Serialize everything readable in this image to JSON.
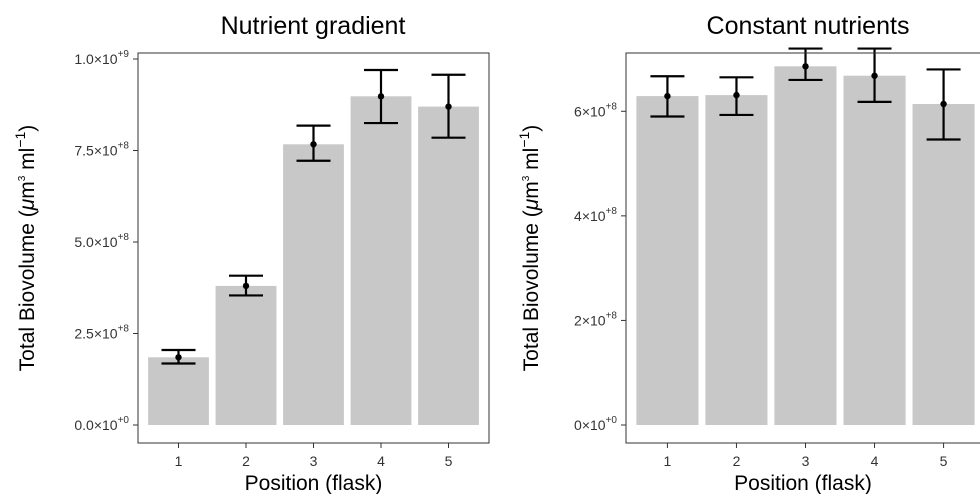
{
  "chart_data": [
    {
      "type": "bar",
      "title": "Nutrient gradient",
      "xlabel": "Position (flask)",
      "ylabel_text": "Total Biovolume (",
      "ylabel_mu": "μ",
      "ylabel_m": "m",
      "ylabel_exp3": "3",
      "ylabel_ml": " ml",
      "ylabel_expm1": "−1",
      "ylabel_close": ")",
      "ylim": [
        0,
        1000000000
      ],
      "yticks": [
        {
          "value": 0,
          "mantissa": "0.0",
          "exponent": "+0"
        },
        {
          "value": 250000000,
          "mantissa": "2.5",
          "exponent": "+8"
        },
        {
          "value": 500000000,
          "mantissa": "5.0",
          "exponent": "+8"
        },
        {
          "value": 750000000,
          "mantissa": "7.5",
          "exponent": "+8"
        },
        {
          "value": 1000000000,
          "mantissa": "1.0",
          "exponent": "+9"
        }
      ],
      "tick_times": "×10",
      "categories": [
        "1",
        "2",
        "3",
        "4",
        "5"
      ],
      "values": [
        185000000,
        380000000,
        767000000,
        898000000,
        870000000
      ],
      "error_upper": [
        205000000,
        408000000,
        818000000,
        970000000,
        957000000
      ],
      "error_lower": [
        168000000,
        354000000,
        722000000,
        825000000,
        785000000
      ],
      "grid": false,
      "bar_color": "#c8c8c8"
    },
    {
      "type": "bar",
      "title": "Constant nutrients",
      "xlabel": "Position (flask)",
      "ylabel_text": "Total Biovolume (",
      "ylabel_mu": "μ",
      "ylabel_m": "m",
      "ylabel_exp3": "3",
      "ylabel_ml": " ml",
      "ylabel_expm1": "−1",
      "ylabel_close": ")",
      "ylim": [
        0,
        700000000
      ],
      "yticks": [
        {
          "value": 0,
          "mantissa": "0",
          "exponent": "+0"
        },
        {
          "value": 200000000,
          "mantissa": "2",
          "exponent": "+8"
        },
        {
          "value": 400000000,
          "mantissa": "4",
          "exponent": "+8"
        },
        {
          "value": 600000000,
          "mantissa": "6",
          "exponent": "+8"
        }
      ],
      "tick_times": "×10",
      "categories": [
        "1",
        "2",
        "3",
        "4",
        "5"
      ],
      "values": [
        629000000,
        631000000,
        686000000,
        668000000,
        614000000
      ],
      "error_upper": [
        667000000,
        665000000,
        720000000,
        720000000,
        680000000
      ],
      "error_lower": [
        590000000,
        593000000,
        660000000,
        618000000,
        546000000
      ],
      "grid": false,
      "bar_color": "#c8c8c8"
    }
  ]
}
